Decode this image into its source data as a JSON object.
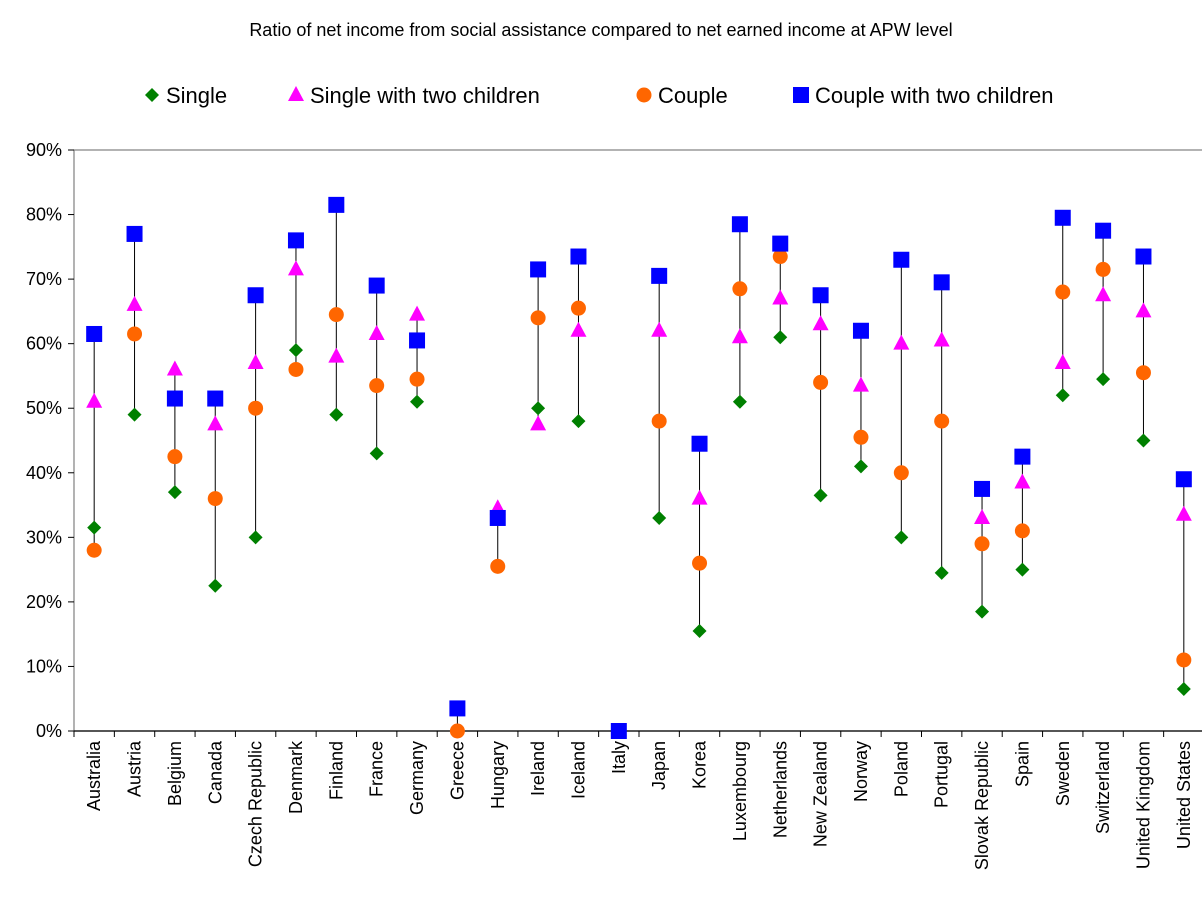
{
  "chart_data": {
    "type": "scatter",
    "title": "Ratio of net income from social assistance compared to net earned income at APW level",
    "xlabel": "",
    "ylabel": "",
    "ylim": [
      0,
      90
    ],
    "y_ticks": [
      "0%",
      "10%",
      "20%",
      "30%",
      "40%",
      "50%",
      "60%",
      "70%",
      "80%",
      "90%"
    ],
    "legend_position": "top",
    "grid": false,
    "categories": [
      "Australia",
      "Austria",
      "Belgium",
      "Canada",
      "Czech Republic",
      "Denmark",
      "Finland",
      "France",
      "Germany",
      "Greece",
      "Hungary",
      "Ireland",
      "Iceland",
      "Italy",
      "Japan",
      "Korea",
      "Luxembourg",
      "Netherlands",
      "New Zealand",
      "Norway",
      "Poland",
      "Portugal",
      "Slovak Republic",
      "Spain",
      "Sweden",
      "Switzerland",
      "United Kingdom",
      "United States"
    ],
    "series": [
      {
        "name": "Single",
        "marker": "diamond",
        "color": "#008000",
        "values": [
          31.5,
          49,
          37,
          22.5,
          30,
          59,
          49,
          43,
          51,
          null,
          null,
          50,
          48,
          null,
          33,
          15.5,
          51,
          61,
          36.5,
          41,
          30,
          24.5,
          18.5,
          25,
          52,
          54.5,
          45,
          6.5
        ]
      },
      {
        "name": "Single with two children",
        "marker": "triangle",
        "color": "#FF00FF",
        "values": [
          51,
          66,
          56,
          47.5,
          57,
          71.5,
          58,
          61.5,
          64.5,
          null,
          34.5,
          47.5,
          62,
          null,
          62,
          36,
          61,
          67,
          63,
          53.5,
          60,
          60.5,
          33,
          38.5,
          57,
          67.5,
          65,
          33.5
        ]
      },
      {
        "name": "Couple",
        "marker": "circle",
        "color": "#FF6600",
        "values": [
          28,
          61.5,
          42.5,
          36,
          50,
          56,
          64.5,
          53.5,
          54.5,
          0,
          25.5,
          64,
          65.5,
          null,
          48,
          26,
          68.5,
          73.5,
          54,
          45.5,
          40,
          48,
          29,
          31,
          68,
          71.5,
          55.5,
          11
        ]
      },
      {
        "name": "Couple with two children",
        "marker": "square",
        "color": "#0000FF",
        "values": [
          61.5,
          77,
          51.5,
          51.5,
          67.5,
          76,
          81.5,
          69,
          60.5,
          3.5,
          33,
          71.5,
          73.5,
          0,
          70.5,
          44.5,
          78.5,
          75.5,
          67.5,
          62,
          73,
          69.5,
          37.5,
          42.5,
          79.5,
          77.5,
          73.5,
          39
        ]
      }
    ]
  }
}
